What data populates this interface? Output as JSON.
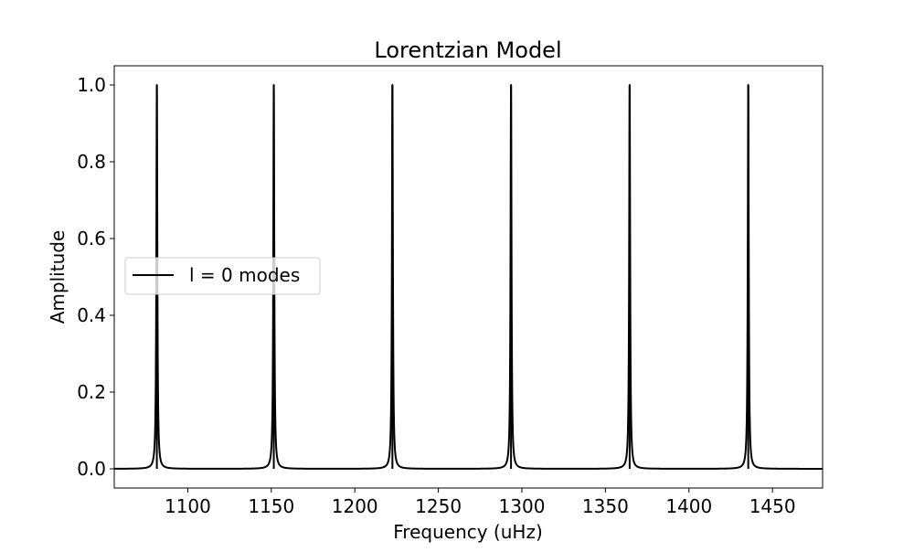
{
  "chart_data": {
    "type": "line",
    "title": "Lorentzian Model",
    "xlabel": "Frequency (uHz)",
    "ylabel": "Amplitude",
    "xlim": [
      1056,
      1480
    ],
    "ylim": [
      -0.05,
      1.05
    ],
    "xticks": [
      1100,
      1150,
      1200,
      1250,
      1300,
      1350,
      1400,
      1450
    ],
    "yticks": [
      0.0,
      0.2,
      0.4,
      0.6,
      0.8,
      1.0
    ],
    "grid": false,
    "legend_position": "center-left",
    "series": [
      {
        "name": "l = 0 modes",
        "color": "#000000",
        "model": "lorentzian",
        "peak_centers": [
          1081.5,
          1151.5,
          1222.5,
          1293.5,
          1364.5,
          1435.5
        ],
        "peak_amplitude": 1.0,
        "baseline": 0.0
      }
    ]
  }
}
